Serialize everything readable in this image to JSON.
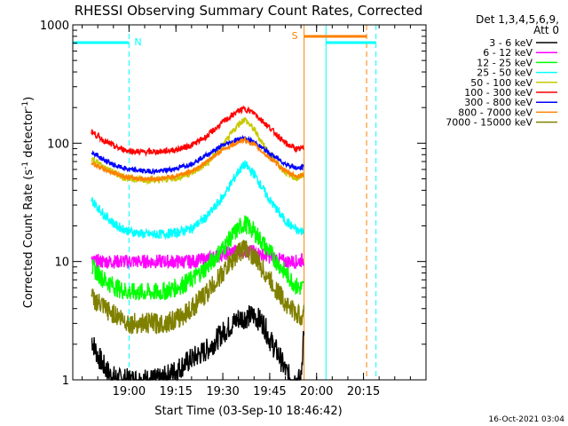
{
  "chart_data": {
    "type": "line",
    "title": "RHESSI Observing Summary Count Rates, Corrected",
    "xlabel": "Start Time (03-Sep-10 18:46:42)",
    "ylabel_main": "Corrected Count Rate (s",
    "ylabel_exp1": "-1",
    "ylabel_mid": " detector",
    "ylabel_exp2": "-1",
    "ylabel_end": ")",
    "yscale": "log",
    "ylim": [
      1,
      1000
    ],
    "xlim_minutes": [
      -18,
      95
    ],
    "x_ticks": [
      {
        "label": "19:00",
        "t": 0
      },
      {
        "label": "19:15",
        "t": 15
      },
      {
        "label": "19:30",
        "t": 30
      },
      {
        "label": "19:45",
        "t": 45
      },
      {
        "label": "20:00",
        "t": 60
      },
      {
        "label": "20:15",
        "t": 75
      }
    ],
    "y_ticks": [
      {
        "label": "1",
        "v": 1
      },
      {
        "label": "10",
        "v": 10
      },
      {
        "label": "100",
        "v": 100
      },
      {
        "label": "1000",
        "v": 1000
      }
    ],
    "legend_header": [
      "Det 1,3,4,5,6,9,",
      "Att 0"
    ],
    "series": [
      {
        "name": "3 - 6 keV",
        "color": "#000000",
        "x": [
          -12,
          -10,
          -8,
          -6,
          -3,
          0,
          5,
          10,
          15,
          20,
          25,
          30,
          35,
          40,
          43,
          45,
          48,
          50,
          52,
          55,
          56
        ],
        "values": [
          2.2,
          1.6,
          1.3,
          1.1,
          1.0,
          1.0,
          1.0,
          1.0,
          1.2,
          1.5,
          1.8,
          2.5,
          3.3,
          3.5,
          3.0,
          2.2,
          1.6,
          1.2,
          1.0,
          1.0,
          3.0
        ]
      },
      {
        "name": "6 - 12 keV",
        "color": "#ff00ff",
        "x": [
          -12,
          -8,
          -4,
          0,
          5,
          10,
          15,
          20,
          25,
          30,
          35,
          40,
          45,
          50,
          54,
          56
        ],
        "values": [
          10,
          10,
          10,
          10,
          10,
          10,
          10,
          10,
          10.5,
          11.5,
          12.5,
          12,
          11,
          10,
          10,
          10.5
        ]
      },
      {
        "name": "12 - 25 keV",
        "color": "#00ff00",
        "x": [
          -12,
          -8,
          -4,
          0,
          5,
          10,
          15,
          20,
          25,
          30,
          35,
          37,
          40,
          45,
          50,
          54,
          56
        ],
        "values": [
          9,
          7,
          6,
          5.5,
          5.5,
          5.5,
          6,
          7,
          9,
          13,
          19,
          21,
          18,
          12,
          8,
          6,
          6
        ]
      },
      {
        "name": "25 - 50 keV",
        "color": "#00ffff",
        "x": [
          -12,
          -8,
          -4,
          0,
          5,
          10,
          15,
          20,
          25,
          30,
          35,
          37,
          40,
          45,
          50,
          54,
          56
        ],
        "values": [
          33,
          25,
          20,
          18,
          17,
          17,
          17.5,
          19,
          24,
          35,
          58,
          66,
          55,
          33,
          22,
          18,
          18
        ]
      },
      {
        "name": "50 - 100 keV",
        "color": "#c8c800",
        "x": [
          -12,
          -8,
          -4,
          0,
          5,
          10,
          15,
          20,
          25,
          30,
          35,
          37,
          40,
          45,
          50,
          54,
          56
        ],
        "values": [
          75,
          62,
          55,
          50,
          49,
          49,
          51,
          56,
          67,
          95,
          145,
          160,
          130,
          80,
          57,
          50,
          55
        ]
      },
      {
        "name": "100 - 300 keV",
        "color": "#ff0000",
        "x": [
          -12,
          -8,
          -4,
          0,
          5,
          10,
          15,
          20,
          25,
          30,
          35,
          37,
          40,
          45,
          50,
          54,
          56
        ],
        "values": [
          125,
          105,
          92,
          86,
          84,
          85,
          88,
          96,
          115,
          150,
          188,
          195,
          180,
          135,
          100,
          88,
          92
        ]
      },
      {
        "name": "300 - 800 keV",
        "color": "#0000ff",
        "x": [
          -12,
          -8,
          -4,
          0,
          5,
          10,
          15,
          20,
          25,
          30,
          35,
          37,
          40,
          45,
          50,
          54,
          56
        ],
        "values": [
          85,
          72,
          64,
          60,
          58,
          58,
          61,
          67,
          80,
          96,
          108,
          110,
          102,
          82,
          67,
          61,
          63
        ]
      },
      {
        "name": "800 - 7000 keV",
        "color": "#ff8000",
        "x": [
          -12,
          -8,
          -4,
          0,
          5,
          10,
          15,
          20,
          25,
          30,
          35,
          37,
          40,
          45,
          50,
          54,
          56
        ],
        "values": [
          68,
          60,
          55,
          51,
          50,
          50,
          53,
          58,
          70,
          88,
          103,
          106,
          97,
          75,
          58,
          52,
          55
        ]
      },
      {
        "name": "7000 - 15000 keV",
        "color": "#808000",
        "x": [
          -12,
          -8,
          -4,
          0,
          5,
          10,
          15,
          20,
          25,
          30,
          35,
          37,
          40,
          45,
          50,
          54,
          56
        ],
        "values": [
          5,
          4,
          3.5,
          3,
          3,
          3,
          3.2,
          4,
          5.5,
          8,
          12,
          13,
          11,
          7,
          4.5,
          3.5,
          3.5
        ]
      }
    ],
    "annotations": {
      "night_label": "N",
      "saa_label": "S",
      "night_bars": [
        {
          "t0": -18,
          "t1": 0
        },
        {
          "t0": 63,
          "t1": 79
        }
      ],
      "saa_bar": {
        "t0": 56,
        "t1": 76
      },
      "cyan_dashed_t": [
        0,
        79
      ],
      "cyan_solid_t": [
        63
      ],
      "orange_solid_t": [
        56
      ],
      "orange_dashed_t": [
        76
      ]
    }
  },
  "footer": {
    "timestamp": "16-Oct-2021 03:04"
  }
}
